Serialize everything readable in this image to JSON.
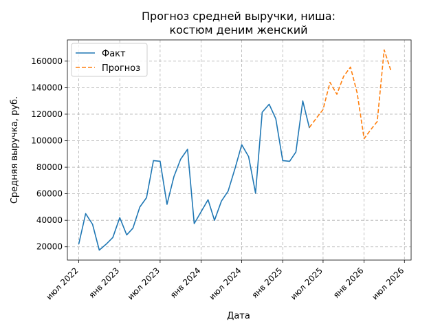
{
  "chart_data": {
    "type": "line",
    "title_line1": "Прогноз средней выручки, ниша:",
    "title_line2": "костюм деним женский",
    "xlabel": "Дата",
    "ylabel": "Средняя выручка, руб.",
    "x_ticks": [
      {
        "date": "2022-07-01",
        "label": "июл 2022"
      },
      {
        "date": "2023-01-01",
        "label": "янв 2023"
      },
      {
        "date": "2023-07-01",
        "label": "июл 2023"
      },
      {
        "date": "2024-01-01",
        "label": "янв 2024"
      },
      {
        "date": "2024-07-01",
        "label": "июл 2024"
      },
      {
        "date": "2025-01-01",
        "label": "янв 2025"
      },
      {
        "date": "2025-07-01",
        "label": "июл 2025"
      },
      {
        "date": "2026-01-01",
        "label": "янв 2026"
      },
      {
        "date": "2026-07-01",
        "label": "июл 2026"
      }
    ],
    "y_ticks": [
      {
        "value": 20000,
        "label": "20000"
      },
      {
        "value": 40000,
        "label": "40000"
      },
      {
        "value": 60000,
        "label": "60000"
      },
      {
        "value": 80000,
        "label": "80000"
      },
      {
        "value": 100000,
        "label": "100000"
      },
      {
        "value": 120000,
        "label": "120000"
      },
      {
        "value": 140000,
        "label": "140000"
      },
      {
        "value": 160000,
        "label": "160000"
      }
    ],
    "xlim": [
      "2022-05-11",
      "2026-07-31"
    ],
    "ylim": [
      10000,
      176000
    ],
    "grid": true,
    "legend_position": "top-left",
    "series": [
      {
        "name": "Факт",
        "color": "#1f77b4",
        "style": "solid",
        "points": [
          {
            "x": "2022-07-01",
            "y": 22000
          },
          {
            "x": "2022-08-01",
            "y": 45000
          },
          {
            "x": "2022-09-01",
            "y": 37000
          },
          {
            "x": "2022-10-01",
            "y": 17500
          },
          {
            "x": "2022-11-01",
            "y": 22000
          },
          {
            "x": "2022-12-01",
            "y": 27000
          },
          {
            "x": "2023-01-01",
            "y": 42000
          },
          {
            "x": "2023-02-01",
            "y": 29000
          },
          {
            "x": "2023-03-01",
            "y": 34000
          },
          {
            "x": "2023-04-01",
            "y": 50000
          },
          {
            "x": "2023-05-01",
            "y": 57000
          },
          {
            "x": "2023-06-01",
            "y": 85000
          },
          {
            "x": "2023-07-01",
            "y": 84500
          },
          {
            "x": "2023-08-01",
            "y": 52000
          },
          {
            "x": "2023-09-01",
            "y": 73000
          },
          {
            "x": "2023-10-01",
            "y": 86000
          },
          {
            "x": "2023-11-01",
            "y": 93500
          },
          {
            "x": "2023-12-01",
            "y": 37500
          },
          {
            "x": "2024-01-01",
            "y": 46500
          },
          {
            "x": "2024-02-01",
            "y": 55500
          },
          {
            "x": "2024-03-01",
            "y": 40000
          },
          {
            "x": "2024-04-01",
            "y": 54500
          },
          {
            "x": "2024-05-01",
            "y": 62000
          },
          {
            "x": "2024-06-01",
            "y": 79000
          },
          {
            "x": "2024-07-01",
            "y": 97000
          },
          {
            "x": "2024-08-01",
            "y": 88000
          },
          {
            "x": "2024-09-01",
            "y": 60500
          },
          {
            "x": "2024-10-01",
            "y": 121500
          },
          {
            "x": "2024-11-01",
            "y": 127500
          },
          {
            "x": "2024-12-01",
            "y": 116500
          },
          {
            "x": "2025-01-01",
            "y": 85000
          },
          {
            "x": "2025-02-01",
            "y": 84500
          },
          {
            "x": "2025-03-01",
            "y": 91500
          },
          {
            "x": "2025-04-01",
            "y": 130000
          },
          {
            "x": "2025-05-01",
            "y": 109500
          }
        ]
      },
      {
        "name": "Прогноз",
        "color": "#ff7f0e",
        "style": "dashed",
        "points": [
          {
            "x": "2025-05-01",
            "y": 110000
          },
          {
            "x": "2025-06-01",
            "y": 117000
          },
          {
            "x": "2025-07-01",
            "y": 123500
          },
          {
            "x": "2025-08-01",
            "y": 144000
          },
          {
            "x": "2025-09-01",
            "y": 135000
          },
          {
            "x": "2025-10-01",
            "y": 148500
          },
          {
            "x": "2025-11-01",
            "y": 155500
          },
          {
            "x": "2025-12-01",
            "y": 136000
          },
          {
            "x": "2026-01-01",
            "y": 101500
          },
          {
            "x": "2026-02-01",
            "y": 108500
          },
          {
            "x": "2026-03-01",
            "y": 114500
          },
          {
            "x": "2026-04-01",
            "y": 168500
          },
          {
            "x": "2026-05-01",
            "y": 153000
          }
        ]
      }
    ]
  }
}
